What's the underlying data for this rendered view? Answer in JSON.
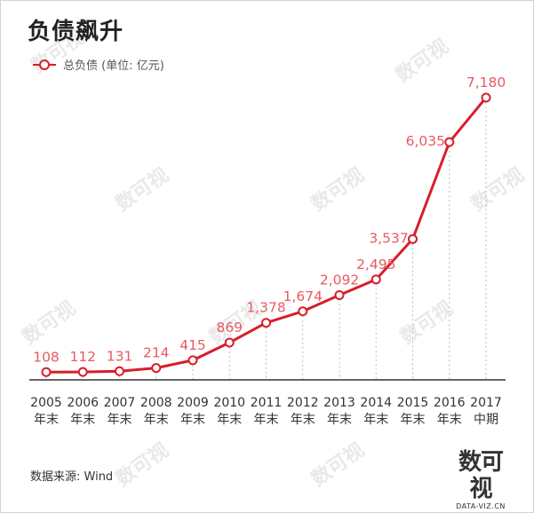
{
  "title": "负债飙升",
  "legend": {
    "label": "总负债 (单位: 亿元)"
  },
  "source": "数据来源: Wind",
  "logo": {
    "mark": "数可视",
    "sub": "DATA-VIZ.CN"
  },
  "watermark": "数可视",
  "colors": {
    "line": "#d71e2a",
    "value_label": "#e85a62",
    "axis": "#333333",
    "guide": "#bbbbbb"
  },
  "chart_data": {
    "type": "line",
    "title": "负债飙升",
    "ylabel": "总负债 (单位: 亿元)",
    "categories": [
      [
        "2005",
        "年末"
      ],
      [
        "2006",
        "年末"
      ],
      [
        "2007",
        "年末"
      ],
      [
        "2008",
        "年末"
      ],
      [
        "2009",
        "年末"
      ],
      [
        "2010",
        "年末"
      ],
      [
        "2011",
        "年末"
      ],
      [
        "2012",
        "年末"
      ],
      [
        "2013",
        "年末"
      ],
      [
        "2014",
        "年末"
      ],
      [
        "2015",
        "年末"
      ],
      [
        "2016",
        "年末"
      ],
      [
        "2017",
        "中期"
      ]
    ],
    "series": [
      {
        "name": "总负债",
        "values": [
          108,
          112,
          131,
          214,
          415,
          869,
          1378,
          1674,
          2092,
          2495,
          3537,
          6035,
          7180
        ],
        "labels": [
          "108",
          "112",
          "131",
          "214",
          "415",
          "869",
          "1,378",
          "1,674",
          "2,092",
          "2,495",
          "3,537",
          "6,035",
          "7,180"
        ]
      }
    ],
    "ylim": [
      0,
      7180
    ],
    "grid": false,
    "legend_position": "top-left"
  }
}
